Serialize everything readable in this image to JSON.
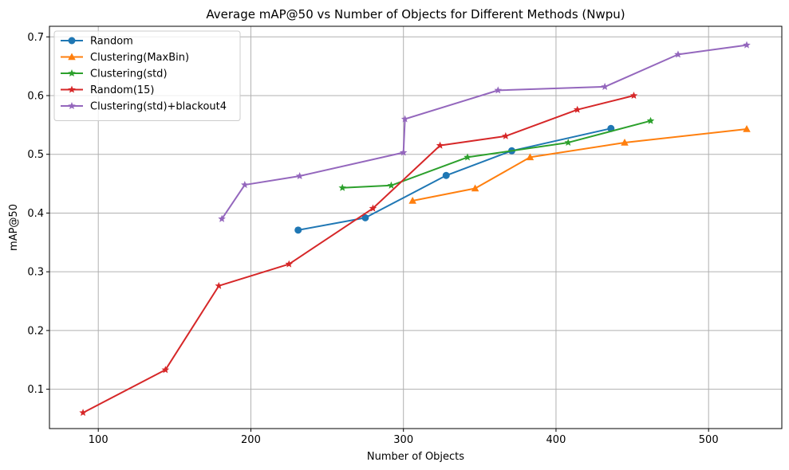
{
  "chart_data": {
    "type": "line",
    "title": "Average mAP@50 vs Number of Objects for Different Methods (Nwpu)",
    "xlabel": "Number of Objects",
    "ylabel": "mAP@50",
    "xlim": [
      68,
      548
    ],
    "ylim": [
      0.033,
      0.718
    ],
    "xticks": [
      100,
      200,
      300,
      400,
      500
    ],
    "yticks": [
      0.1,
      0.2,
      0.3,
      0.4,
      0.5,
      0.6,
      0.7
    ],
    "grid": true,
    "legend_position": "upper-left",
    "series": [
      {
        "name": "Random",
        "color": "#1f77b4",
        "marker": "circle",
        "x": [
          231,
          275,
          328,
          371,
          436
        ],
        "y": [
          0.371,
          0.392,
          0.464,
          0.506,
          0.544
        ]
      },
      {
        "name": "Clustering(MaxBin)",
        "color": "#ff7f0e",
        "marker": "triangle",
        "x": [
          306,
          347,
          383,
          445,
          525
        ],
        "y": [
          0.421,
          0.442,
          0.495,
          0.52,
          0.543
        ]
      },
      {
        "name": "Clustering(std)",
        "color": "#2ca02c",
        "marker": "star",
        "x": [
          260,
          292,
          342,
          408,
          462
        ],
        "y": [
          0.443,
          0.447,
          0.495,
          0.52,
          0.557
        ]
      },
      {
        "name": "Random(15)",
        "color": "#d62728",
        "marker": "star",
        "x": [
          90,
          144,
          179,
          225,
          280,
          324,
          367,
          414,
          451
        ],
        "y": [
          0.06,
          0.133,
          0.276,
          0.313,
          0.408,
          0.515,
          0.531,
          0.576,
          0.6
        ]
      },
      {
        "name": "Clustering(std)+blackout4",
        "color": "#9467bd",
        "marker": "star",
        "x": [
          181,
          196,
          232,
          300,
          301,
          362,
          432,
          480,
          525
        ],
        "y": [
          0.39,
          0.448,
          0.463,
          0.503,
          0.56,
          0.609,
          0.615,
          0.67,
          0.686
        ]
      }
    ]
  }
}
